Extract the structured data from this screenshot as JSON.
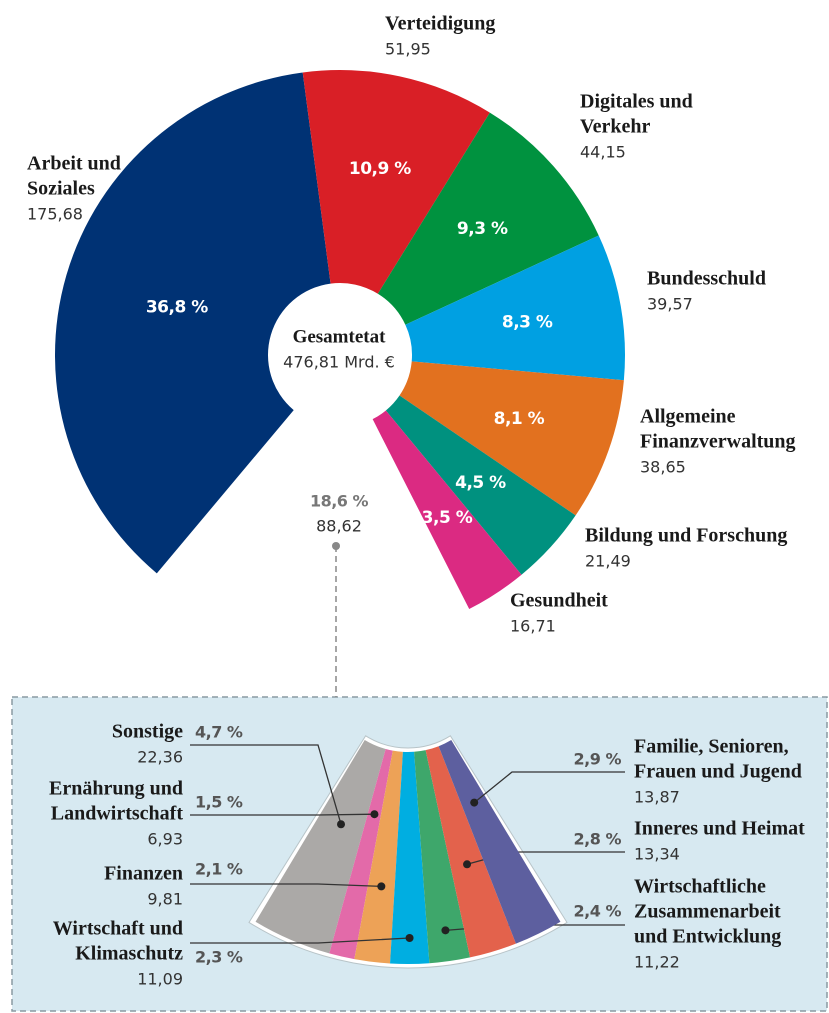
{
  "chart_data": {
    "type": "donut",
    "center_title": "Gesamtetat",
    "center_label": "476,81 Mrd. €",
    "segments": [
      {
        "name": [
          "Arbeit und",
          "Soziales"
        ],
        "color": "#003274",
        "percent": 36.8,
        "percent_label": "36,8 %",
        "amount": 175.68,
        "amount_label": "175,68"
      },
      {
        "name": [
          "Verteidigung"
        ],
        "color": "#d91f26",
        "percent": 10.9,
        "percent_label": "10,9 %",
        "amount": 51.95,
        "amount_label": "51,95"
      },
      {
        "name": [
          "Digitales und",
          "Verkehr"
        ],
        "color": "#00923f",
        "percent": 9.3,
        "percent_label": "9,3 %",
        "amount": 44.15,
        "amount_label": "44,15"
      },
      {
        "name": [
          "Bundesschuld"
        ],
        "color": "#00a0e2",
        "percent": 8.3,
        "percent_label": "8,3 %",
        "amount": 39.57,
        "amount_label": "39,57"
      },
      {
        "name": [
          "Allgemeine",
          "Finanzverwaltung"
        ],
        "color": "#e2711f",
        "percent": 8.1,
        "percent_label": "8,1 %",
        "amount": 38.65,
        "amount_label": "38,65"
      },
      {
        "name": [
          "Bildung und Forschung"
        ],
        "color": "#00917f",
        "percent": 4.5,
        "percent_label": "4,5 %",
        "amount": 21.49,
        "amount_label": "21,49"
      },
      {
        "name": [
          "Gesundheit"
        ],
        "color": "#db2a82",
        "percent": 3.5,
        "percent_label": "3,5 %",
        "amount": 16.71,
        "amount_label": "16,71"
      }
    ],
    "rest": {
      "percent": 18.6,
      "percent_label": "18,6 %",
      "amount": 88.62,
      "amount_label": "88,62"
    },
    "detail": [
      {
        "name": [
          "Sonstige"
        ],
        "color": "#aba9a7",
        "percent": 4.7,
        "percent_label": "4,7 %",
        "amount": 22.36,
        "amount_label": "22,36"
      },
      {
        "name": [
          "Ernährung und",
          "Landwirtschaft"
        ],
        "color": "#e36aa9",
        "percent": 1.5,
        "percent_label": "1,5 %",
        "amount": 6.93,
        "amount_label": "6,93"
      },
      {
        "name": [
          "Finanzen"
        ],
        "color": "#eda257",
        "percent": 2.1,
        "percent_label": "2,1 %",
        "amount": 9.81,
        "amount_label": "9,81"
      },
      {
        "name": [
          "Wirtschaft und",
          "Klimaschutz"
        ],
        "color": "#00aee1",
        "percent": 2.3,
        "percent_label": "2,3 %",
        "amount": 11.09,
        "amount_label": "11,09"
      },
      {
        "name": [
          "Wirtschaftliche",
          "Zusammenarbeit",
          "und Entwicklung"
        ],
        "color": "#3ea76b",
        "percent": 2.4,
        "percent_label": "2,4 %",
        "amount": 11.22,
        "amount_label": "11,22"
      },
      {
        "name": [
          "Inneres und Heimat"
        ],
        "color": "#e3624c",
        "percent": 2.8,
        "percent_label": "2,8 %",
        "amount": 13.34,
        "amount_label": "13,34"
      },
      {
        "name": [
          "Familie, Senioren,",
          "Frauen und Jugend"
        ],
        "color": "#5d5f9f",
        "percent": 2.9,
        "percent_label": "2,9 %",
        "amount": 13.87,
        "amount_label": "13,87"
      }
    ]
  }
}
